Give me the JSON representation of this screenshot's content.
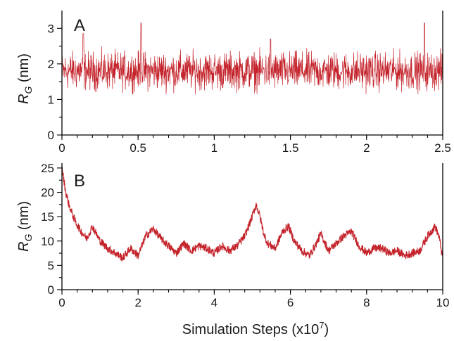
{
  "figure": {
    "xlabel_shared": "Simulation Steps (x10",
    "xlabel_exponent": "7",
    "xlabel_close": ")"
  },
  "chart_data": [
    {
      "type": "line",
      "panel_label": "A",
      "ylabel_main": "R",
      "ylabel_sub": "G",
      "ylabel_unit": " (nm)",
      "xlim": [
        0,
        2.5
      ],
      "ylim": [
        0,
        3.5
      ],
      "x_ticks": [
        0,
        0.5,
        1,
        1.5,
        2,
        2.5
      ],
      "x_tick_labels": [
        "0",
        "0.5",
        "1",
        "1.5",
        "2",
        "2.5"
      ],
      "y_ticks": [
        0,
        1,
        2,
        3
      ],
      "y_tick_labels": [
        "0",
        "1",
        "2",
        "3"
      ],
      "color": "#c4232b",
      "grid": false,
      "series": [
        {
          "values_note_free": true,
          "mean": 1.8,
          "noise_amplitude": 0.32,
          "min": 1.15,
          "max": 3.15,
          "peaks": [
            {
              "x": 0.52,
              "y": 3.15
            },
            {
              "x": 2.38,
              "y": 3.15
            },
            {
              "x": 0.14,
              "y": 2.85
            },
            {
              "x": 1.37,
              "y": 2.7
            }
          ]
        }
      ]
    },
    {
      "type": "line",
      "panel_label": "B",
      "ylabel_main": "R",
      "ylabel_sub": "G",
      "ylabel_unit": " (nm)",
      "xlim": [
        0,
        10
      ],
      "ylim": [
        0,
        26
      ],
      "x_ticks": [
        0,
        2,
        4,
        6,
        8,
        10
      ],
      "x_tick_labels": [
        "0",
        "2",
        "4",
        "6",
        "8",
        "10"
      ],
      "y_ticks": [
        0,
        5,
        10,
        15,
        20,
        25
      ],
      "y_tick_labels": [
        "0",
        "5",
        "10",
        "15",
        "20",
        "25"
      ],
      "color": "#c4232b",
      "grid": false,
      "series": [
        {
          "x": [
            0,
            0.1,
            0.2,
            0.35,
            0.5,
            0.65,
            0.8,
            1.0,
            1.2,
            1.4,
            1.6,
            1.8,
            2.0,
            2.2,
            2.4,
            2.6,
            2.8,
            3.0,
            3.2,
            3.4,
            3.6,
            3.8,
            4.0,
            4.2,
            4.4,
            4.6,
            4.8,
            4.95,
            5.1,
            5.2,
            5.3,
            5.4,
            5.6,
            5.8,
            5.95,
            6.1,
            6.3,
            6.5,
            6.65,
            6.8,
            7.0,
            7.2,
            7.4,
            7.6,
            7.8,
            8.0,
            8.2,
            8.4,
            8.6,
            8.8,
            9.0,
            9.2,
            9.4,
            9.6,
            9.8,
            9.9,
            10.0
          ],
          "y": [
            25,
            20,
            17,
            14,
            12,
            10.5,
            13,
            10,
            8.5,
            7.5,
            6.5,
            8.5,
            7,
            11,
            12.5,
            10.5,
            9,
            7.5,
            9.5,
            8,
            9,
            8.5,
            7.5,
            9,
            8,
            9,
            11,
            14,
            17.5,
            15,
            11.5,
            9.5,
            8.5,
            12,
            13,
            10,
            8,
            7,
            9,
            11.5,
            8,
            9.5,
            11,
            12,
            9,
            7.5,
            8.5,
            8.5,
            7.5,
            8,
            7,
            7.5,
            8,
            11,
            13,
            11,
            6.5
          ]
        }
      ]
    }
  ]
}
